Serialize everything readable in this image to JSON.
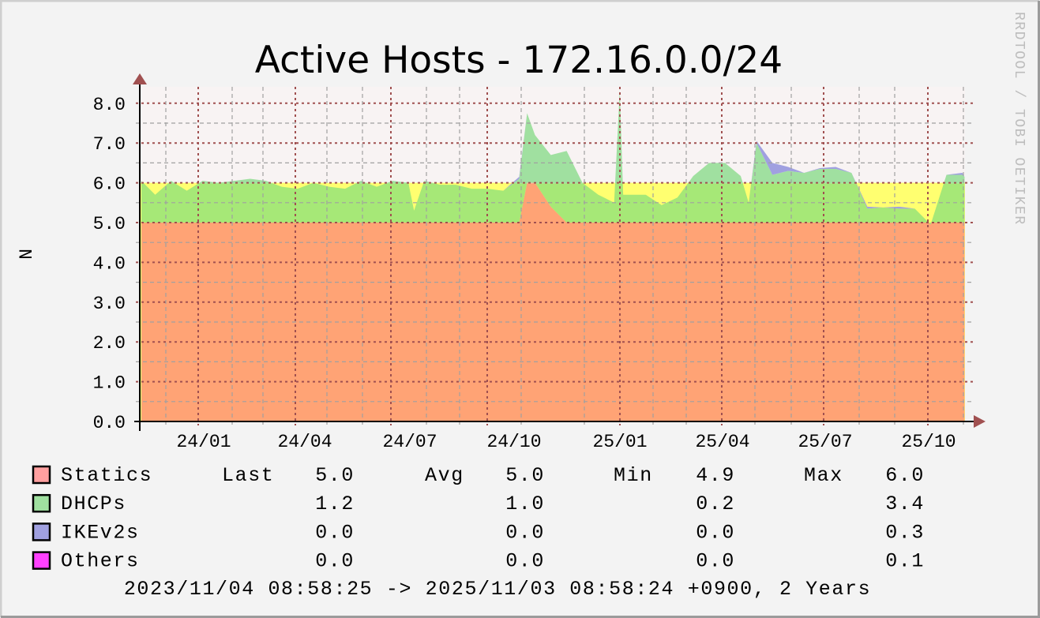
{
  "chart_data": {
    "type": "area",
    "stacked": true,
    "title": "Active Hosts - 172.16.0.0/24",
    "ylabel": "N",
    "xlabel": "",
    "watermark": "RRDTOOL / TOBI OETIKER",
    "ylim": [
      0,
      8.4
    ],
    "yticks": [
      "0.0",
      "1.0",
      "2.0",
      "3.0",
      "4.0",
      "5.0",
      "6.0",
      "7.0",
      "8.0"
    ],
    "xrange": [
      "2023-11-04T08:58:25",
      "2025-11-03T08:58:24"
    ],
    "xticks": [
      "24/01",
      "24/04",
      "24/07",
      "24/10",
      "25/01",
      "25/04",
      "25/07",
      "25/10"
    ],
    "grid": true,
    "reference_band": {
      "from": 5.0,
      "to": 6.0,
      "color": "#ffff70"
    },
    "series_names": [
      "Statics",
      "DHCPs",
      "IKEv2s",
      "Others"
    ],
    "series_colors": {
      "Statics": "#ffa0a0",
      "DHCPs": "#a0e0a0",
      "IKEv2s": "#a0a0e0",
      "Others": "#ff40ff"
    },
    "points_columns": [
      "date",
      "Statics",
      "DHCPs",
      "IKEv2s",
      "Others"
    ],
    "points": [
      [
        "2023-11-04",
        5.0,
        1.05,
        0,
        0
      ],
      [
        "2023-11-18",
        5.0,
        0.7,
        0,
        0
      ],
      [
        "2023-12-02",
        5.0,
        1.05,
        0,
        0
      ],
      [
        "2023-12-16",
        5.0,
        0.8,
        0,
        0
      ],
      [
        "2023-12-30",
        5.0,
        1.05,
        0,
        0
      ],
      [
        "2024-01-13",
        5.0,
        1.0,
        0,
        0
      ],
      [
        "2024-01-27",
        5.0,
        1.05,
        0,
        0
      ],
      [
        "2024-02-10",
        5.0,
        1.1,
        0,
        0
      ],
      [
        "2024-02-24",
        5.0,
        1.05,
        0,
        0
      ],
      [
        "2024-03-09",
        5.0,
        0.9,
        0,
        0
      ],
      [
        "2024-03-23",
        5.0,
        0.85,
        0,
        0
      ],
      [
        "2024-04-06",
        5.0,
        1.0,
        0,
        0
      ],
      [
        "2024-04-20",
        5.0,
        0.9,
        0,
        0
      ],
      [
        "2024-05-04",
        5.0,
        0.85,
        0,
        0
      ],
      [
        "2024-05-18",
        5.0,
        1.05,
        0,
        0
      ],
      [
        "2024-06-01",
        5.0,
        0.9,
        0,
        0
      ],
      [
        "2024-06-15",
        5.0,
        1.05,
        0,
        0
      ],
      [
        "2024-06-29",
        5.0,
        1.0,
        0,
        0
      ],
      [
        "2024-07-04",
        5.0,
        0.3,
        0,
        0
      ],
      [
        "2024-07-13",
        5.0,
        1.05,
        0,
        0
      ],
      [
        "2024-07-27",
        5.0,
        0.95,
        0,
        0
      ],
      [
        "2024-08-10",
        5.0,
        0.95,
        0,
        0
      ],
      [
        "2024-08-24",
        5.0,
        0.85,
        0,
        0
      ],
      [
        "2024-09-07",
        5.0,
        0.85,
        0,
        0
      ],
      [
        "2024-09-21",
        5.0,
        0.8,
        0,
        0
      ],
      [
        "2024-10-05",
        5.0,
        1.1,
        0.05,
        0
      ],
      [
        "2024-10-12",
        6.0,
        1.75,
        0,
        0
      ],
      [
        "2024-10-19",
        6.0,
        1.2,
        0,
        0
      ],
      [
        "2024-11-02",
        5.4,
        1.3,
        0,
        0
      ],
      [
        "2024-11-16",
        5.0,
        1.8,
        0,
        0
      ],
      [
        "2024-11-30",
        5.0,
        1.0,
        0,
        0
      ],
      [
        "2024-12-14",
        5.0,
        0.7,
        0,
        0
      ],
      [
        "2024-12-28",
        5.0,
        0.5,
        0,
        0
      ],
      [
        "2025-01-02",
        5.0,
        3.33,
        0,
        0
      ],
      [
        "2025-01-05",
        5.0,
        0.7,
        0,
        0
      ],
      [
        "2025-01-11",
        5.0,
        0.7,
        0,
        0
      ],
      [
        "2025-01-25",
        5.0,
        0.7,
        0,
        0
      ],
      [
        "2025-02-08",
        5.0,
        0.44,
        0,
        0
      ],
      [
        "2025-02-22",
        5.0,
        0.63,
        0,
        0
      ],
      [
        "2025-03-08",
        5.0,
        1.17,
        0,
        0
      ],
      [
        "2025-03-22",
        5.0,
        1.5,
        0,
        0
      ],
      [
        "2025-04-05",
        5.0,
        1.5,
        0,
        0
      ],
      [
        "2025-04-19",
        5.0,
        1.17,
        0,
        0
      ],
      [
        "2025-04-26",
        5.0,
        0.5,
        0,
        0
      ],
      [
        "2025-05-03",
        5.0,
        2.0,
        0.05,
        0
      ],
      [
        "2025-05-17",
        5.0,
        1.2,
        0.3,
        0
      ],
      [
        "2025-05-31",
        5.0,
        1.3,
        0.1,
        0
      ],
      [
        "2025-06-14",
        5.0,
        1.25,
        0,
        0
      ],
      [
        "2025-06-28",
        5.0,
        1.35,
        0.02,
        0
      ],
      [
        "2025-07-12",
        5.0,
        1.35,
        0.05,
        0
      ],
      [
        "2025-07-26",
        5.0,
        1.25,
        0,
        0
      ],
      [
        "2025-08-09",
        5.0,
        0.35,
        0.05,
        0
      ],
      [
        "2025-08-23",
        5.0,
        0.38,
        0,
        0
      ],
      [
        "2025-09-06",
        5.0,
        0.35,
        0.05,
        0
      ],
      [
        "2025-09-20",
        5.0,
        0.35,
        0,
        0
      ],
      [
        "2025-10-04",
        5.0,
        -0.05,
        0,
        0
      ],
      [
        "2025-10-18",
        5.0,
        1.2,
        0,
        0
      ],
      [
        "2025-11-01",
        5.0,
        1.2,
        0.05,
        0
      ],
      [
        "2025-11-03",
        5.0,
        1.15,
        0,
        0
      ]
    ]
  },
  "legend": {
    "headers": {
      "last": "Last",
      "avg": "Avg",
      "min": "Min",
      "max": "Max"
    },
    "rows": [
      {
        "name": "Statics",
        "color": "#ffa0a0",
        "last": "5.0",
        "avg": "5.0",
        "min": "4.9",
        "max": "6.0"
      },
      {
        "name": "DHCPs",
        "color": "#a0e0a0",
        "last": "1.2",
        "avg": "1.0",
        "min": "0.2",
        "max": "3.4"
      },
      {
        "name": "IKEv2s",
        "color": "#a0a0e0",
        "last": "0.0",
        "avg": "0.0",
        "min": "0.0",
        "max": "0.3"
      },
      {
        "name": "Others",
        "color": "#ff40ff",
        "last": "0.0",
        "avg": "0.0",
        "min": "0.0",
        "max": "0.1"
      }
    ],
    "footer": "2023/11/04 08:58:25 -> 2025/11/03 08:58:24 +0900, 2 Years"
  }
}
